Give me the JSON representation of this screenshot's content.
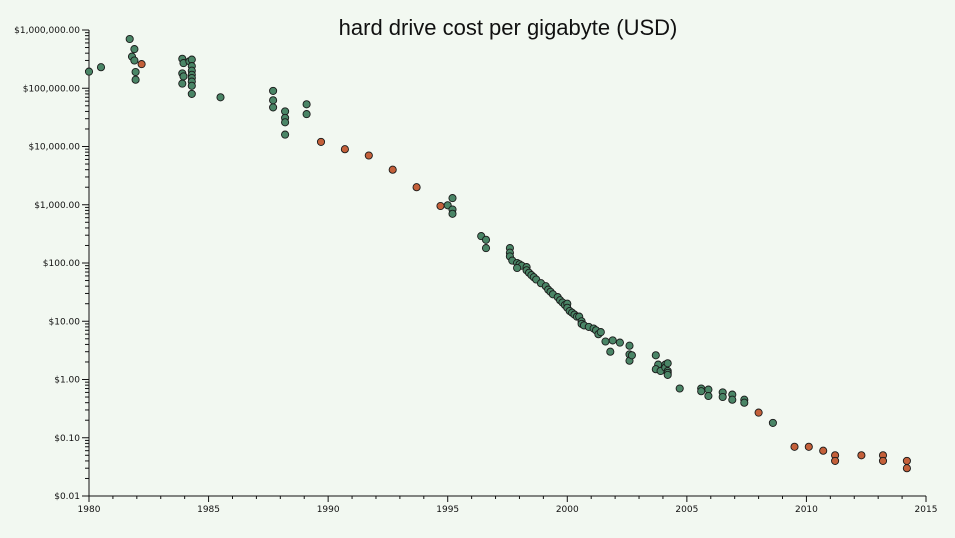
{
  "chart_data": {
    "type": "scatter",
    "title": "hard drive cost per gigabyte (USD)",
    "xlabel": "",
    "ylabel": "",
    "x_scale": "linear",
    "y_scale": "log",
    "xlim": [
      1980,
      2015
    ],
    "ylim": [
      0.01,
      1000000
    ],
    "x_ticks": [
      1980,
      1985,
      1990,
      1995,
      2000,
      2005,
      2010,
      2015
    ],
    "x_tick_labels": [
      "1980",
      "1985",
      "1990",
      "1995",
      "2000",
      "2005",
      "2010",
      "2015"
    ],
    "y_ticks": [
      0.01,
      0.1,
      1,
      10,
      100,
      1000,
      10000,
      100000,
      1000000
    ],
    "y_tick_labels": [
      "$0.01",
      "$0.10",
      "$1.00",
      "$10.00",
      "$100.00",
      "$1,000.00",
      "$10,000.00",
      "$100,000.00",
      "$1,000,000.00"
    ],
    "grid": false,
    "colors": {
      "green": "#4a8566",
      "orange": "#c4603a"
    },
    "series": [
      {
        "color": "green",
        "points": [
          [
            1980.0,
            193000
          ],
          [
            1980.5,
            230000
          ],
          [
            1981.7,
            700000
          ],
          [
            1981.9,
            470000
          ],
          [
            1981.8,
            350000
          ],
          [
            1981.9,
            300000
          ],
          [
            1981.95,
            190000
          ],
          [
            1981.95,
            140000
          ],
          [
            1983.9,
            320000
          ],
          [
            1983.95,
            270000
          ],
          [
            1983.9,
            180000
          ],
          [
            1983.95,
            160000
          ],
          [
            1983.9,
            120000
          ],
          [
            1984.2,
            290000
          ],
          [
            1984.3,
            310000
          ],
          [
            1984.3,
            240000
          ],
          [
            1984.3,
            200000
          ],
          [
            1984.3,
            170000
          ],
          [
            1984.3,
            150000
          ],
          [
            1984.3,
            130000
          ],
          [
            1984.3,
            110000
          ],
          [
            1984.3,
            80000
          ],
          [
            1985.5,
            70000
          ],
          [
            1987.7,
            90000
          ],
          [
            1987.7,
            62000
          ],
          [
            1987.7,
            47000
          ],
          [
            1988.2,
            40000
          ],
          [
            1988.2,
            31000
          ],
          [
            1988.2,
            26000
          ],
          [
            1988.2,
            16000
          ],
          [
            1989.1,
            53000
          ],
          [
            1989.1,
            36000
          ],
          [
            1995.0,
            980
          ],
          [
            1995.2,
            1300
          ],
          [
            1995.2,
            830
          ],
          [
            1995.2,
            700
          ],
          [
            1996.4,
            290
          ],
          [
            1996.6,
            250
          ],
          [
            1996.6,
            180
          ],
          [
            1997.6,
            180
          ],
          [
            1997.6,
            150
          ],
          [
            1997.6,
            130
          ],
          [
            1997.7,
            110
          ],
          [
            1997.9,
            100
          ],
          [
            1998.0,
            95
          ],
          [
            1998.1,
            90
          ],
          [
            1997.9,
            82
          ],
          [
            1998.3,
            85
          ],
          [
            1998.3,
            75
          ],
          [
            1998.4,
            68
          ],
          [
            1998.5,
            62
          ],
          [
            1998.6,
            57
          ],
          [
            1998.7,
            52
          ],
          [
            1998.9,
            45
          ],
          [
            1999.1,
            40
          ],
          [
            1999.2,
            35
          ],
          [
            1999.3,
            32
          ],
          [
            1999.4,
            29
          ],
          [
            1999.6,
            26
          ],
          [
            1999.7,
            23
          ],
          [
            1999.8,
            21
          ],
          [
            1999.9,
            19
          ],
          [
            2000.0,
            20
          ],
          [
            2000.0,
            17
          ],
          [
            2000.1,
            15
          ],
          [
            2000.2,
            14
          ],
          [
            2000.3,
            13
          ],
          [
            2000.4,
            12
          ],
          [
            2000.5,
            12
          ],
          [
            2000.6,
            10
          ],
          [
            2000.6,
            9
          ],
          [
            2000.7,
            8.5
          ],
          [
            2000.9,
            8
          ],
          [
            2001.1,
            7.5
          ],
          [
            2001.2,
            7
          ],
          [
            2001.3,
            6
          ],
          [
            2001.4,
            6.5
          ],
          [
            2001.6,
            4.5
          ],
          [
            2001.9,
            4.7
          ],
          [
            2001.8,
            3.0
          ],
          [
            2002.2,
            4.3
          ],
          [
            2002.6,
            3.8
          ],
          [
            2002.6,
            2.7
          ],
          [
            2002.6,
            2.1
          ],
          [
            2002.7,
            2.6
          ],
          [
            2003.7,
            2.6
          ],
          [
            2003.8,
            1.8
          ],
          [
            2003.7,
            1.5
          ],
          [
            2003.9,
            1.4
          ],
          [
            2004.1,
            1.8
          ],
          [
            2004.1,
            1.6
          ],
          [
            2004.2,
            1.9
          ],
          [
            2004.2,
            1.4
          ],
          [
            2004.2,
            1.3
          ],
          [
            2004.2,
            1.2
          ],
          [
            2004.7,
            0.7
          ],
          [
            2005.6,
            0.7
          ],
          [
            2005.6,
            0.63
          ],
          [
            2005.9,
            0.67
          ],
          [
            2005.9,
            0.52
          ],
          [
            2006.5,
            0.6
          ],
          [
            2006.5,
            0.5
          ],
          [
            2006.9,
            0.55
          ],
          [
            2006.9,
            0.45
          ],
          [
            2007.4,
            0.45
          ],
          [
            2007.4,
            0.4
          ],
          [
            2008.6,
            0.18
          ]
        ]
      },
      {
        "color": "orange",
        "points": [
          [
            1982.2,
            260000
          ],
          [
            1989.7,
            12000
          ],
          [
            1990.7,
            9000
          ],
          [
            1991.7,
            7000
          ],
          [
            1992.7,
            4000
          ],
          [
            1993.7,
            2000
          ],
          [
            1994.7,
            950
          ],
          [
            2008.0,
            0.27
          ],
          [
            2009.5,
            0.07
          ],
          [
            2010.1,
            0.07
          ],
          [
            2010.7,
            0.06
          ],
          [
            2011.2,
            0.05
          ],
          [
            2011.2,
            0.04
          ],
          [
            2012.3,
            0.05
          ],
          [
            2013.2,
            0.05
          ],
          [
            2013.2,
            0.04
          ],
          [
            2014.2,
            0.04
          ],
          [
            2014.2,
            0.03
          ]
        ]
      }
    ]
  }
}
